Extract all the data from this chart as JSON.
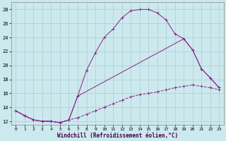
{
  "xlabel": "Windchill (Refroidissement éolien,°C)",
  "background_color": "#cce9ee",
  "grid_color": "#aacdd4",
  "line_color": "#882288",
  "xlim": [
    -0.5,
    23.5
  ],
  "ylim": [
    11.5,
    29
  ],
  "yticks": [
    12,
    14,
    16,
    18,
    20,
    22,
    24,
    26,
    28
  ],
  "xticks": [
    0,
    1,
    2,
    3,
    4,
    5,
    6,
    7,
    8,
    9,
    10,
    11,
    12,
    13,
    14,
    15,
    16,
    17,
    18,
    19,
    20,
    21,
    22,
    23
  ],
  "line1_x": [
    0,
    1,
    2,
    3,
    4,
    5,
    6,
    7,
    8,
    9,
    10,
    11,
    12,
    13,
    14,
    15,
    16,
    17,
    18,
    19,
    20,
    21,
    22,
    23
  ],
  "line1_y": [
    13.5,
    12.8,
    12.2,
    12.0,
    12.0,
    11.8,
    12.2,
    15.6,
    19.3,
    21.8,
    24.0,
    25.2,
    26.8,
    27.8,
    28.0,
    28.0,
    27.5,
    26.5,
    24.5,
    23.8,
    22.2,
    19.5,
    18.2,
    16.8
  ],
  "line2_x": [
    0,
    1,
    2,
    3,
    4,
    5,
    6,
    7,
    8,
    9,
    10,
    11,
    12,
    13,
    14,
    15,
    16,
    17,
    18,
    19,
    20,
    21,
    22,
    23
  ],
  "line2_y": [
    13.5,
    12.8,
    12.2,
    12.0,
    12.0,
    11.8,
    12.2,
    12.5,
    13.0,
    13.5,
    14.0,
    14.5,
    15.0,
    15.5,
    15.8,
    16.0,
    16.2,
    16.5,
    16.8,
    17.0,
    17.2,
    17.0,
    16.8,
    16.5
  ],
  "line3_x": [
    0,
    1,
    2,
    3,
    4,
    5,
    6,
    7,
    19,
    20,
    21,
    22,
    23
  ],
  "line3_y": [
    13.5,
    12.8,
    12.2,
    12.0,
    12.0,
    11.8,
    12.2,
    15.6,
    23.8,
    22.2,
    19.5,
    18.2,
    16.8
  ]
}
